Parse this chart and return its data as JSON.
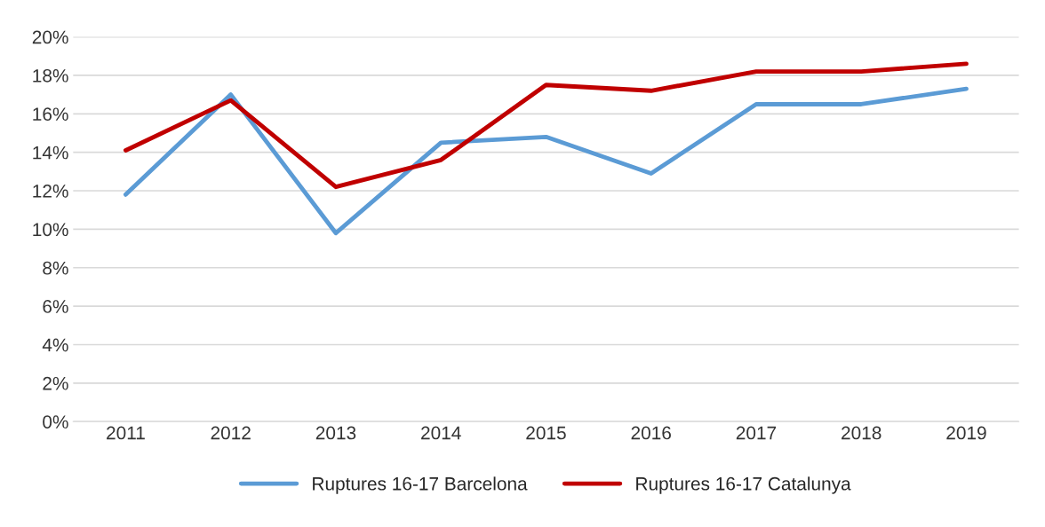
{
  "chart_data": {
    "type": "line",
    "categories": [
      "2011",
      "2012",
      "2013",
      "2014",
      "2015",
      "2016",
      "2017",
      "2018",
      "2019"
    ],
    "series": [
      {
        "name": "Ruptures 16-17 Barcelona",
        "color": "#5b9bd5",
        "values": [
          11.8,
          17.0,
          9.8,
          14.5,
          14.8,
          12.9,
          16.5,
          16.5,
          17.3
        ]
      },
      {
        "name": "Ruptures 16-17 Catalunya",
        "color": "#c00000",
        "values": [
          14.1,
          16.7,
          12.2,
          13.6,
          17.5,
          17.2,
          18.2,
          18.2,
          18.6
        ]
      }
    ],
    "ylim": [
      0,
      20
    ],
    "yticks": [
      {
        "value": 0,
        "label": "0%"
      },
      {
        "value": 2,
        "label": "2%"
      },
      {
        "value": 4,
        "label": "4%"
      },
      {
        "value": 6,
        "label": "6%"
      },
      {
        "value": 8,
        "label": "8%"
      },
      {
        "value": 10,
        "label": "10%"
      },
      {
        "value": 12,
        "label": "12%"
      },
      {
        "value": 14,
        "label": "14%"
      },
      {
        "value": 16,
        "label": "16%"
      },
      {
        "value": 18,
        "label": "18%"
      },
      {
        "value": 20,
        "label": "20%"
      }
    ],
    "grid": "y",
    "legend": "bottom",
    "marker": "none",
    "line_style": "solid"
  }
}
